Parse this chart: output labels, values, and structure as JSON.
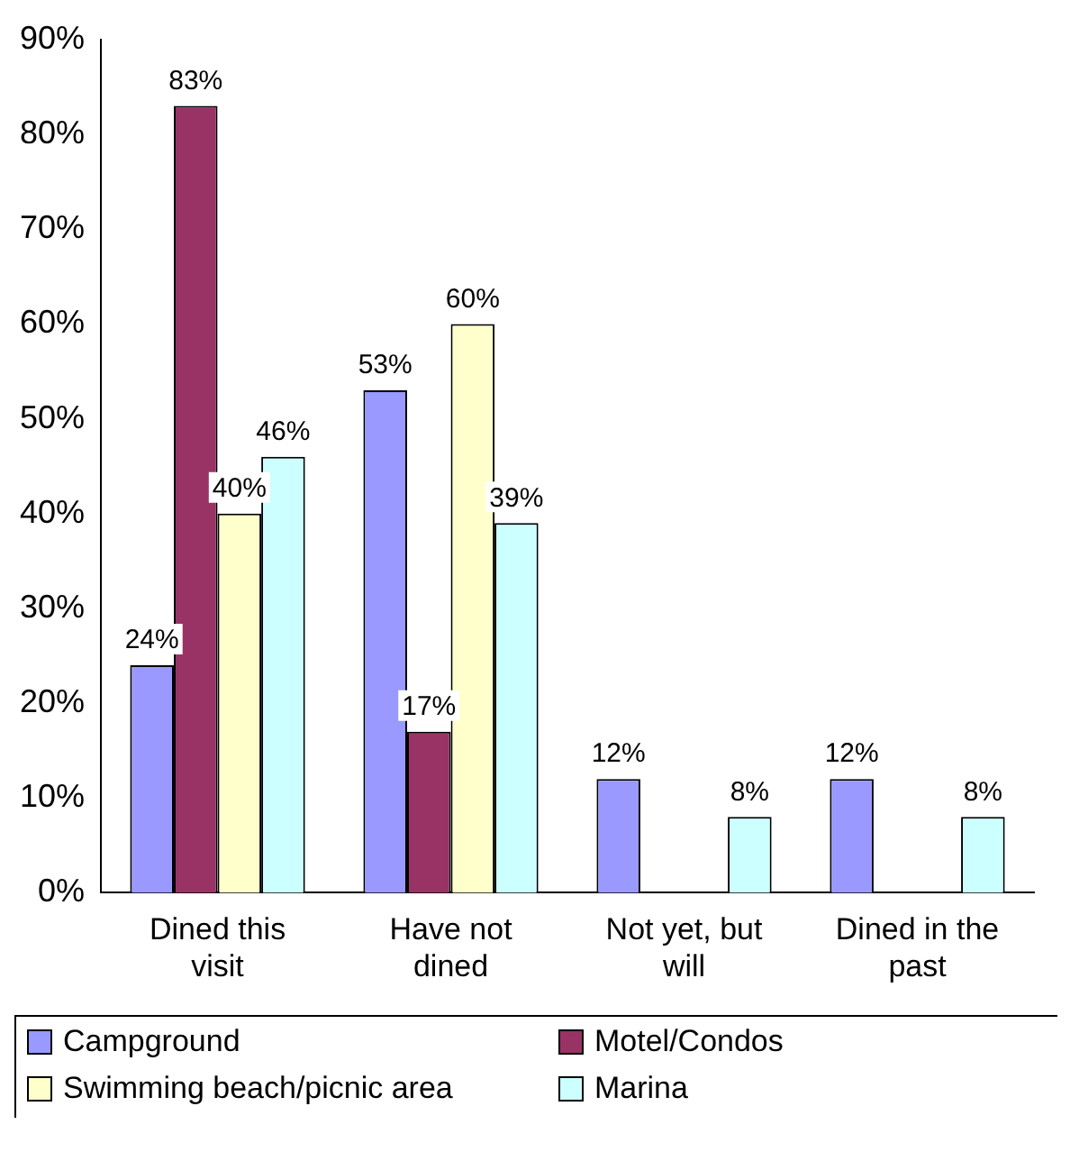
{
  "chart_data": {
    "type": "bar",
    "categories": [
      "Dined this visit",
      "Have not dined",
      "Not yet, but will",
      "Dined in the past"
    ],
    "series": [
      {
        "name": "Campground",
        "color": "#9999ff",
        "values": [
          24,
          53,
          12,
          12
        ],
        "value_labels": [
          "24%",
          "53%",
          "12%",
          "12%"
        ]
      },
      {
        "name": "Motel/Condos",
        "color": "#993366",
        "values": [
          83,
          17,
          null,
          null
        ],
        "value_labels": [
          "83%",
          "17%",
          null,
          null
        ]
      },
      {
        "name": "Swimming beach/picnic area",
        "color": "#ffffcc",
        "values": [
          40,
          60,
          null,
          null
        ],
        "value_labels": [
          "40%",
          "60%",
          null,
          null
        ]
      },
      {
        "name": "Marina",
        "color": "#ccffff",
        "values": [
          46,
          39,
          8,
          8
        ],
        "value_labels": [
          "46%",
          "39%",
          "8%",
          "8%"
        ]
      }
    ],
    "ylim": [
      0,
      90
    ],
    "yticks": [
      {
        "value": 0,
        "label": "0%"
      },
      {
        "value": 10,
        "label": "10%"
      },
      {
        "value": 20,
        "label": "20%"
      },
      {
        "value": 30,
        "label": "30%"
      },
      {
        "value": 40,
        "label": "40%"
      },
      {
        "value": 50,
        "label": "50%"
      },
      {
        "value": 60,
        "label": "60%"
      },
      {
        "value": 70,
        "label": "70%"
      },
      {
        "value": 80,
        "label": "80%"
      },
      {
        "value": 90,
        "label": "90%"
      }
    ],
    "grid": false,
    "legend": "bottom"
  }
}
